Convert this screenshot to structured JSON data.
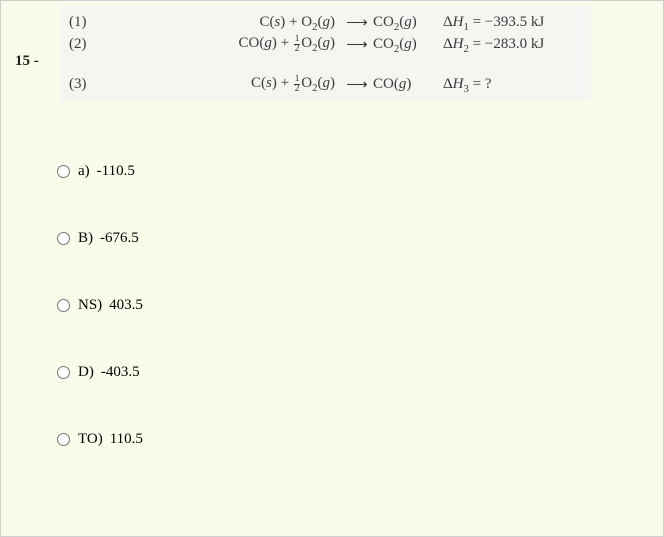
{
  "question_number": "15 -",
  "equation_box": {
    "background_color": "#f5f6f2",
    "text_color": "#3a3a3a",
    "rows": [
      {
        "num": "(1)",
        "lhs_html": "C(<span class=\"italic\">s</span>) + O<span class=\"sub\">2</span>(<span class=\"italic\">g</span>)",
        "arrow": "⟶",
        "rhs_html": "CO<span class=\"sub\">2</span>(<span class=\"italic\">g</span>)",
        "dh_html": "Δ<span class=\"italic\">H</span><span class=\"sub\">1</span> = −393.5 kJ"
      },
      {
        "num": "(2)",
        "lhs_html": "CO(<span class=\"italic\">g</span>) + <span class=\"frac\"><span class=\"t\">1</span><span class=\"b\">2</span></span>O<span class=\"sub\">2</span>(<span class=\"italic\">g</span>)",
        "arrow": "⟶",
        "rhs_html": "CO<span class=\"sub\">2</span>(<span class=\"italic\">g</span>)",
        "dh_html": "Δ<span class=\"italic\">H</span><span class=\"sub\">2</span> = −283.0 kJ"
      },
      {
        "num": "(3)",
        "lhs_html": "C(<span class=\"italic\">s</span>) + <span class=\"frac\"><span class=\"t\">1</span><span class=\"b\">2</span></span>O<span class=\"sub\">2</span>(<span class=\"italic\">g</span>)",
        "arrow": "⟶",
        "rhs_html": "CO(<span class=\"italic\">g</span>)",
        "dh_html": "Δ<span class=\"italic\">H</span><span class=\"sub\">3</span> = ?"
      }
    ]
  },
  "answers": [
    {
      "label": "a)",
      "value": "-110.5"
    },
    {
      "label": "B)",
      "value": "-676.5"
    },
    {
      "label": "NS)",
      "value": "403.5"
    },
    {
      "label": "D)",
      "value": "-403.5"
    },
    {
      "label": "TO)",
      "value": "110.5"
    }
  ],
  "colors": {
    "page_background": "#fbfbeb",
    "page_border": "#cfcfcf"
  }
}
